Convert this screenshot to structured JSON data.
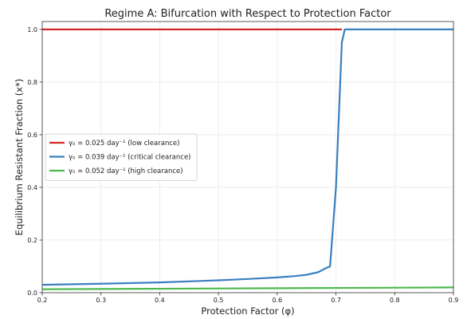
{
  "chart_data": {
    "type": "line",
    "title": "Regime A: Bifurcation with Respect to Protection Factor",
    "xlabel": "Protection Factor (φ)",
    "ylabel": "Equilibrium Resistant Fraction (x*)",
    "xlim": [
      0.2,
      0.9
    ],
    "ylim": [
      0.0,
      1.03
    ],
    "xticks": [
      "0.2",
      "0.3",
      "0.4",
      "0.5",
      "0.6",
      "0.7",
      "0.8",
      "0.9"
    ],
    "yticks": [
      "0.0",
      "0.2",
      "0.4",
      "0.6",
      "0.8",
      "1.0"
    ],
    "grid": true,
    "legend_position": "center-left",
    "series": [
      {
        "name": "γ₀ = 0.025 day⁻¹ (low clearance)",
        "color": "#d62728",
        "x": [
          0.2,
          0.71
        ],
        "y": [
          1.0,
          1.0
        ]
      },
      {
        "name": "γ₀ = 0.039 day⁻¹ (critical clearance)",
        "color": "#3b7fc0",
        "x": [
          0.2,
          0.3,
          0.4,
          0.5,
          0.55,
          0.6,
          0.63,
          0.65,
          0.67,
          0.68,
          0.69,
          0.7,
          0.71,
          0.715,
          0.8,
          0.9
        ],
        "y": [
          0.03,
          0.034,
          0.039,
          0.047,
          0.052,
          0.058,
          0.063,
          0.068,
          0.078,
          0.09,
          0.1,
          0.4,
          0.95,
          1.0,
          1.0,
          1.0
        ]
      },
      {
        "name": "γ₀ = 0.052 day⁻¹ (high clearance)",
        "color": "#4db84d",
        "x": [
          0.2,
          0.9
        ],
        "y": [
          0.013,
          0.02
        ]
      }
    ]
  }
}
